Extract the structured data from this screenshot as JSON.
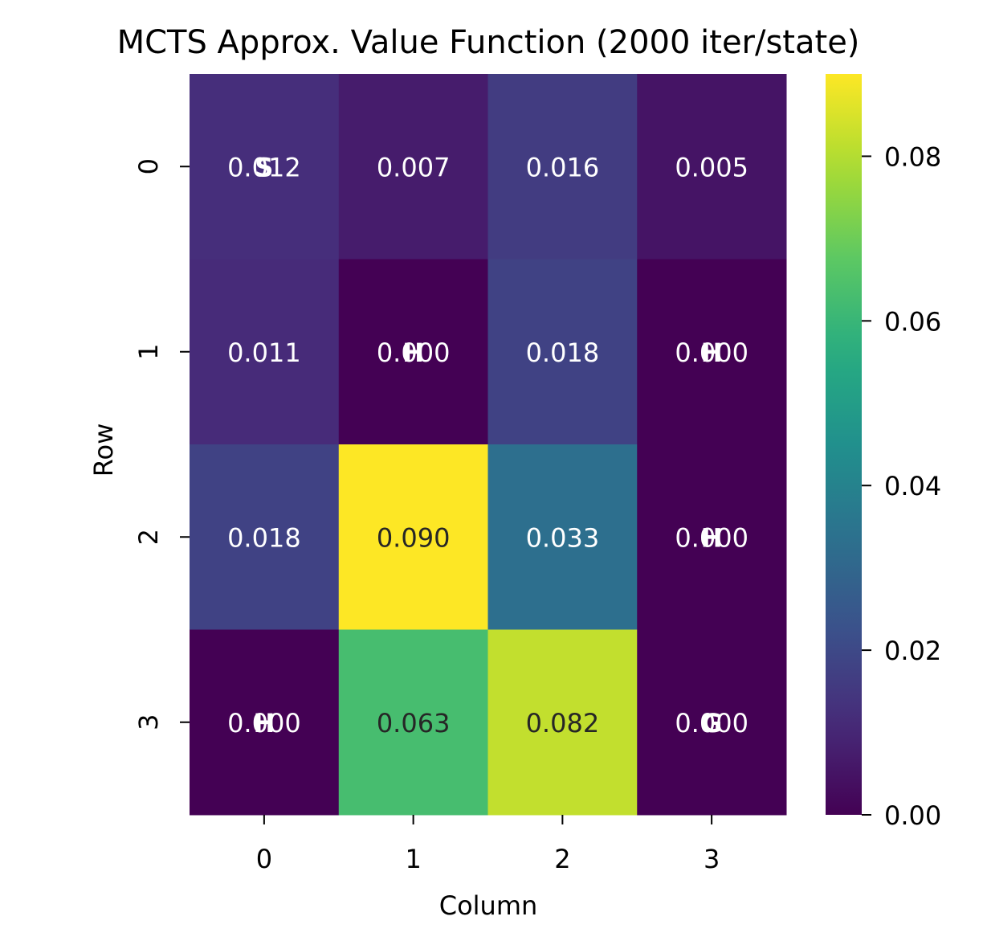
{
  "chart_data": {
    "type": "heatmap",
    "title": "MCTS Approx. Value Function (2000 iter/state)",
    "xlabel": "Column",
    "ylabel": "Row",
    "x_categories": [
      "0",
      "1",
      "2",
      "3"
    ],
    "y_categories": [
      "0",
      "1",
      "2",
      "3"
    ],
    "values": [
      [
        0.012,
        0.007,
        0.016,
        0.005
      ],
      [
        0.011,
        0.0,
        0.018,
        0.0
      ],
      [
        0.018,
        0.09,
        0.033,
        0.0
      ],
      [
        0.0,
        0.063,
        0.082,
        0.0
      ]
    ],
    "value_labels": [
      [
        "0.012",
        "0.007",
        "0.016",
        "0.005"
      ],
      [
        "0.011",
        "0.000",
        "0.018",
        "0.000"
      ],
      [
        "0.018",
        "0.090",
        "0.033",
        "0.000"
      ],
      [
        "0.000",
        "0.063",
        "0.082",
        "0.000"
      ]
    ],
    "cell_markers": [
      [
        "S",
        "",
        "",
        ""
      ],
      [
        "",
        "H",
        "",
        "H"
      ],
      [
        "",
        "",
        "",
        "H"
      ],
      [
        "H",
        "",
        "",
        "G"
      ]
    ],
    "colormap": "viridis",
    "colorbar": {
      "range": [
        0.0,
        0.09
      ],
      "ticks": [
        0.0,
        0.02,
        0.04,
        0.06,
        0.08
      ],
      "tick_labels": [
        "0.00",
        "0.02",
        "0.04",
        "0.06",
        "0.08"
      ]
    },
    "colors": {
      "dark_text": "#262626",
      "light_text": "#ffffff",
      "axis": "#000000"
    }
  }
}
